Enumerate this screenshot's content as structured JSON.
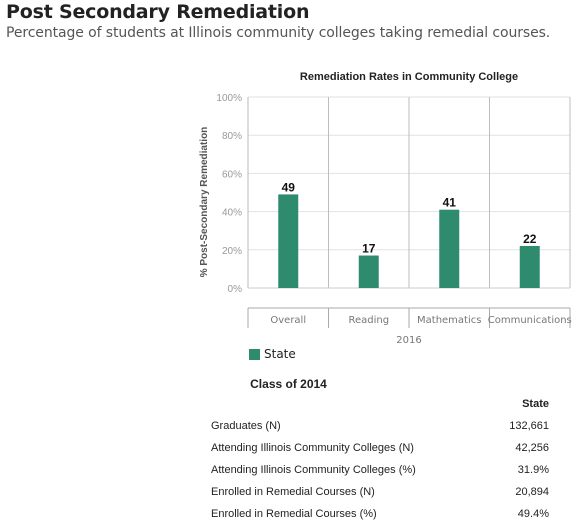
{
  "header": {
    "title": "Post Secondary Remediation",
    "subtitle": "Percentage of students at Illinois community colleges taking remedial courses."
  },
  "chart_data": {
    "type": "bar",
    "title": "Remediation Rates in Community College",
    "ylabel": "% Post-Secondary Remediation",
    "group_label": "2016",
    "categories": [
      "Overall",
      "Reading",
      "Mathematics",
      "Communications"
    ],
    "series": [
      {
        "name": "State",
        "values": [
          49,
          17,
          41,
          22
        ],
        "color": "#2e8b6e"
      }
    ],
    "ylim": [
      0,
      100
    ],
    "yticks": [
      "0%",
      "20%",
      "40%",
      "60%",
      "80%",
      "100%"
    ],
    "ytick_values": [
      0,
      20,
      40,
      60,
      80,
      100
    ],
    "grid": true,
    "legend": "bottom-left"
  },
  "table": {
    "title": "Class of 2014",
    "column_header": "State",
    "rows": [
      {
        "label": "Graduates (N)",
        "value": "132,661"
      },
      {
        "label": "Attending Illinois Community Colleges (N)",
        "value": "42,256"
      },
      {
        "label": "Attending Illinois Community Colleges (%)",
        "value": "31.9%"
      },
      {
        "label": "Enrolled in Remedial Courses (N)",
        "value": "20,894"
      },
      {
        "label": "Enrolled in Remedial Courses (%)",
        "value": "49.4%"
      }
    ]
  }
}
